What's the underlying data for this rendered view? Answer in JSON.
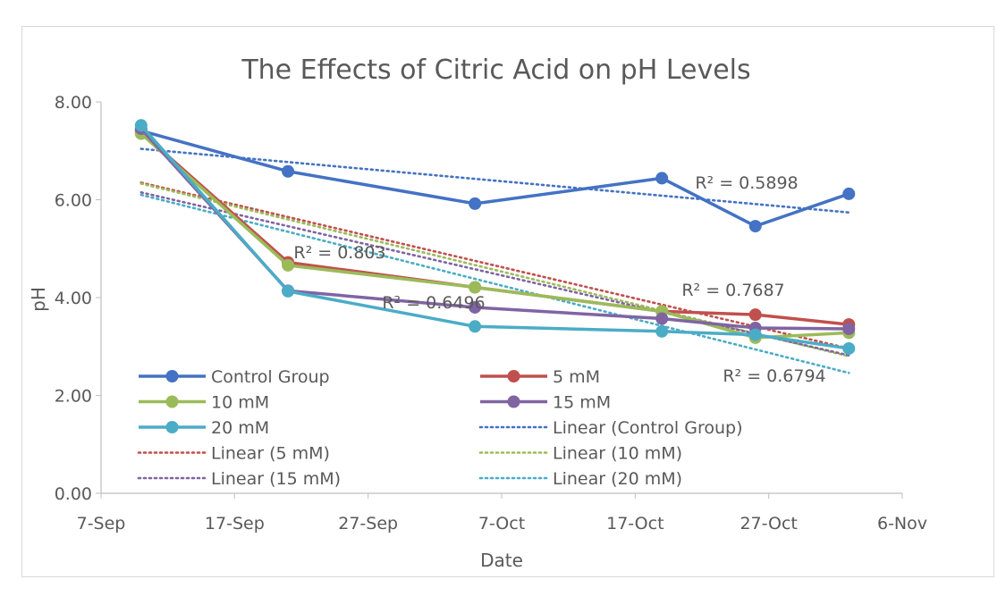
{
  "chart_data": {
    "type": "line",
    "title": "The Effects of Citric Acid on pH Levels",
    "xlabel": "Date",
    "ylabel": "pH",
    "x_ticks": [
      "7-Sep",
      "17-Sep",
      "27-Sep",
      "7-Oct",
      "17-Oct",
      "27-Oct",
      "6-Nov"
    ],
    "y_ticks": [
      "0.00",
      "2.00",
      "4.00",
      "6.00",
      "8.00"
    ],
    "ylim": [
      0,
      8
    ],
    "xlim": [
      "7-Sep",
      "6-Nov"
    ],
    "x": [
      "10-Sep",
      "21-Sep",
      "5-Oct",
      "19-Oct",
      "26-Oct",
      "2-Nov"
    ],
    "series": [
      {
        "name": "Control Group",
        "color": "#4472C4",
        "values": [
          7.41,
          6.58,
          5.92,
          6.44,
          5.46,
          6.12
        ]
      },
      {
        "name": "5 mM",
        "color": "#C0504D",
        "values": [
          7.38,
          4.72,
          4.21,
          3.72,
          3.65,
          3.45
        ]
      },
      {
        "name": "10 mM",
        "color": "#9BBB59",
        "values": [
          7.35,
          4.66,
          4.21,
          3.72,
          3.18,
          3.28
        ]
      },
      {
        "name": "15 mM",
        "color": "#8064A2",
        "values": [
          7.45,
          4.14,
          3.8,
          3.57,
          3.38,
          3.36
        ]
      },
      {
        "name": "20 mM",
        "color": "#4BACC6",
        "values": [
          7.52,
          4.13,
          3.41,
          3.31,
          3.24,
          2.96
        ]
      }
    ],
    "trendlines": [
      {
        "name": "Linear (Control Group)",
        "color": "#4472C4",
        "start": 7.04,
        "end": 5.74
      },
      {
        "name": "Linear (5 mM)",
        "color": "#C0504D",
        "start": 6.35,
        "end": 2.96
      },
      {
        "name": "Linear (10 mM)",
        "color": "#9BBB59",
        "start": 6.33,
        "end": 2.8
      },
      {
        "name": "Linear (15 mM)",
        "color": "#8064A2",
        "start": 6.15,
        "end": 2.82
      },
      {
        "name": "Linear (20 mM)",
        "color": "#4BACC6",
        "start": 6.1,
        "end": 2.46
      }
    ],
    "r2_labels": [
      "R² = 0.5898",
      "R² = 0.803",
      "R² = 0.6496",
      "R² = 0.7687",
      "R² = 0.6794"
    ],
    "legend_position": "bottom-left inside plot",
    "grid": false
  }
}
